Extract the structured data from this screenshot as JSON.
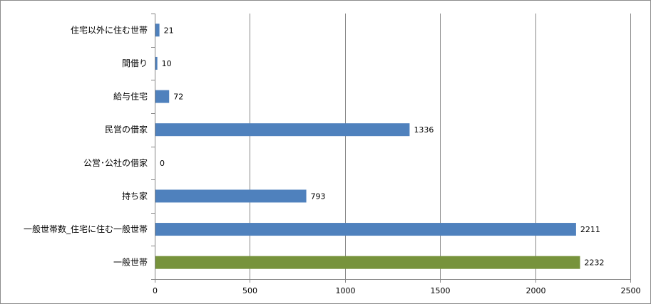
{
  "chart_data": {
    "type": "bar",
    "orientation": "horizontal",
    "title": "",
    "xlabel": "",
    "ylabel": "",
    "xlim": [
      0,
      2500
    ],
    "x_ticks": [
      0,
      500,
      1000,
      1500,
      2000,
      2500
    ],
    "grid": "vertical",
    "legend": "none",
    "categories": [
      "住宅以外に住む世帯",
      "間借り",
      "給与住宅",
      "民営の借家",
      "公営･公社の借家",
      "持ち家",
      "一般世帯数_住宅に住む一般世帯",
      "一般世帯"
    ],
    "values": [
      21,
      10,
      72,
      1336,
      0,
      793,
      2211,
      2232
    ],
    "bar_colors": [
      "#4f81bd",
      "#4f81bd",
      "#4f81bd",
      "#4f81bd",
      "#4f81bd",
      "#4f81bd",
      "#4f81bd",
      "#77933c"
    ],
    "colors": {
      "series": "#4f81bd",
      "highlight": "#77933c",
      "grid": "#868686",
      "axis": "#868686"
    }
  }
}
